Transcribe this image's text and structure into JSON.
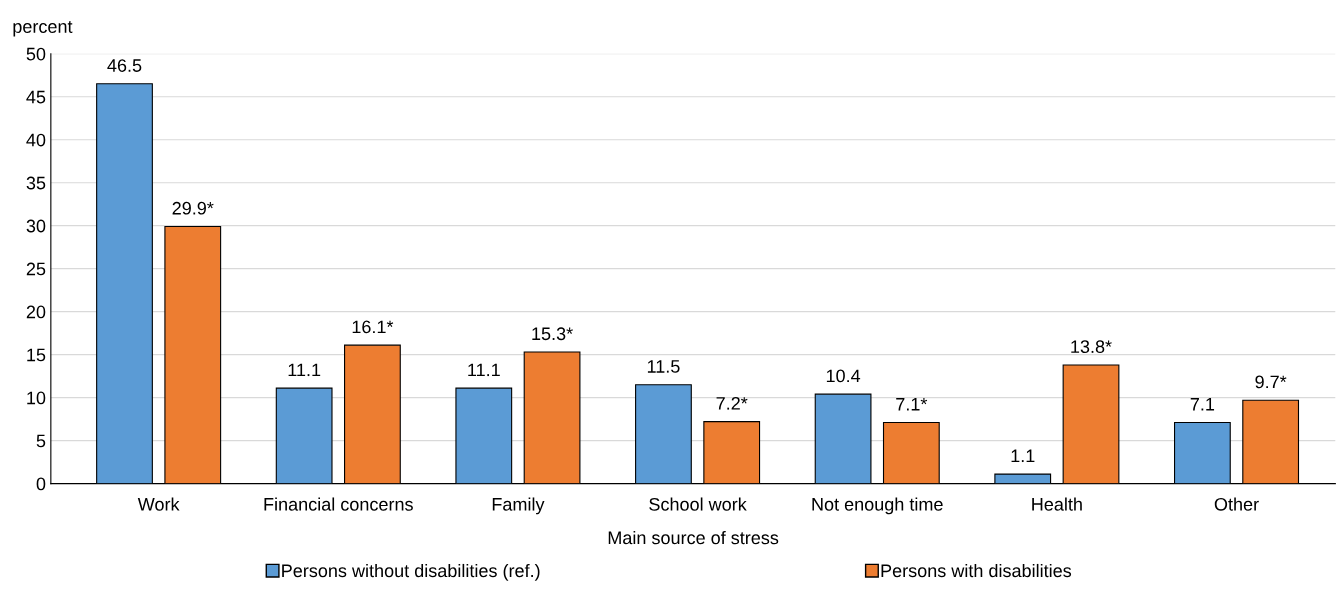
{
  "chart_data": {
    "type": "bar",
    "ylabel": "percent",
    "xlabel": "Main source of stress",
    "categories": [
      "Work",
      "Financial concerns",
      "Family",
      "School work",
      "Not enough time",
      "Health",
      "Other"
    ],
    "series": [
      {
        "name": "Persons without disabilities (ref.)",
        "color": "#5b9bd5",
        "values": [
          46.5,
          11.1,
          11.1,
          11.5,
          10.4,
          1.1,
          7.1
        ],
        "value_labels": [
          "46.5",
          "11.1",
          "11.1",
          "11.5",
          "10.4",
          "1.1",
          "7.1"
        ]
      },
      {
        "name": "Persons with disabilities",
        "color": "#ed7d31",
        "values": [
          29.9,
          16.1,
          15.3,
          7.2,
          7.1,
          13.8,
          9.7
        ],
        "value_labels": [
          "29.9*",
          "16.1*",
          "15.3*",
          "7.2*",
          "7.1*",
          "13.8*",
          "9.7*"
        ]
      }
    ],
    "ylim": [
      0,
      50
    ],
    "yticks": [
      0,
      5,
      10,
      15,
      20,
      25,
      30,
      35,
      40,
      45,
      50
    ],
    "grid": "y",
    "legend": "bottom"
  }
}
